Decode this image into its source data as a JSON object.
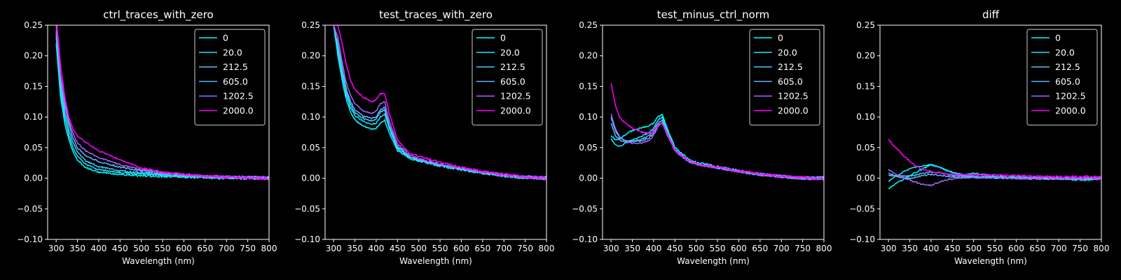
{
  "chart_data": [
    {
      "type": "line",
      "title": "ctrl_traces_with_zero",
      "xlabel": "Wavelength (nm)",
      "ylabel": "",
      "xlim": [
        280,
        800
      ],
      "ylim": [
        -0.1,
        0.25
      ],
      "xticks": [
        300,
        350,
        400,
        450,
        500,
        550,
        600,
        650,
        700,
        750,
        800
      ],
      "xtick_labels": [
        "300",
        "350",
        "400",
        "450",
        "500",
        "550",
        "600",
        "650",
        "700",
        "750",
        "800"
      ],
      "yticks": [
        -0.1,
        -0.05,
        0.0,
        0.05,
        0.1,
        0.15,
        0.2,
        0.25
      ],
      "ytick_labels": [
        "−0.10",
        "−0.05",
        "0.00",
        "0.05",
        "0.10",
        "0.15",
        "0.20",
        "0.25"
      ],
      "legend_position": "top-right",
      "grid": false,
      "x": [
        300,
        310,
        320,
        330,
        340,
        350,
        370,
        400,
        450,
        500,
        550,
        600,
        650,
        700,
        750,
        800
      ],
      "series": [
        {
          "name": "0",
          "color": "#00ffff",
          "values": [
            0.22,
            0.135,
            0.09,
            0.062,
            0.043,
            0.03,
            0.017,
            0.01,
            0.006,
            0.004,
            0.003,
            0.002,
            0.001,
            0.0,
            0.0,
            0.0
          ]
        },
        {
          "name": "20.0",
          "color": "#1ae5ff",
          "values": [
            0.23,
            0.145,
            0.1,
            0.07,
            0.05,
            0.036,
            0.022,
            0.014,
            0.009,
            0.007,
            0.005,
            0.003,
            0.002,
            0.001,
            0.001,
            0.0
          ]
        },
        {
          "name": "212.5",
          "color": "#40ccff",
          "values": [
            0.235,
            0.155,
            0.11,
            0.078,
            0.057,
            0.042,
            0.028,
            0.019,
            0.012,
            0.009,
            0.006,
            0.004,
            0.002,
            0.001,
            0.001,
            0.0
          ]
        },
        {
          "name": "605.0",
          "color": "#66b2ff",
          "values": [
            0.24,
            0.165,
            0.12,
            0.088,
            0.065,
            0.05,
            0.037,
            0.027,
            0.018,
            0.012,
            0.008,
            0.005,
            0.003,
            0.002,
            0.001,
            0.0
          ]
        },
        {
          "name": "1202.5",
          "color": "#a366ff",
          "values": [
            0.25,
            0.17,
            0.125,
            0.093,
            0.072,
            0.058,
            0.044,
            0.034,
            0.022,
            0.014,
            0.009,
            0.006,
            0.003,
            0.002,
            0.001,
            0.0
          ]
        },
        {
          "name": "2000.0",
          "color": "#ff00ff",
          "values": [
            0.265,
            0.185,
            0.135,
            0.1,
            0.08,
            0.068,
            0.058,
            0.045,
            0.03,
            0.017,
            0.01,
            0.006,
            0.004,
            0.002,
            0.001,
            0.0
          ]
        }
      ]
    },
    {
      "type": "line",
      "title": "test_traces_with_zero",
      "xlabel": "Wavelength (nm)",
      "ylabel": "",
      "xlim": [
        280,
        800
      ],
      "ylim": [
        -0.1,
        0.25
      ],
      "xticks": [
        300,
        350,
        400,
        450,
        500,
        550,
        600,
        650,
        700,
        750,
        800
      ],
      "xtick_labels": [
        "300",
        "350",
        "400",
        "450",
        "500",
        "550",
        "600",
        "650",
        "700",
        "750",
        "800"
      ],
      "yticks": [
        -0.1,
        -0.05,
        0.0,
        0.05,
        0.1,
        0.15,
        0.2,
        0.25
      ],
      "ytick_labels": [
        "−0.10",
        "−0.05",
        "0.00",
        "0.05",
        "0.10",
        "0.15",
        "0.20",
        "0.25"
      ],
      "legend_position": "top-right",
      "grid": false,
      "x": [
        300,
        310,
        320,
        330,
        340,
        350,
        370,
        390,
        400,
        410,
        420,
        430,
        450,
        480,
        500,
        550,
        600,
        650,
        700,
        750,
        800
      ],
      "series": [
        {
          "name": "0",
          "color": "#00ffff",
          "values": [
            0.25,
            0.2,
            0.16,
            0.128,
            0.108,
            0.095,
            0.085,
            0.08,
            0.082,
            0.09,
            0.095,
            0.075,
            0.045,
            0.032,
            0.028,
            0.02,
            0.014,
            0.008,
            0.004,
            0.001,
            0.0
          ]
        },
        {
          "name": "20.0",
          "color": "#1ae5ff",
          "values": [
            0.25,
            0.21,
            0.17,
            0.135,
            0.115,
            0.102,
            0.093,
            0.088,
            0.09,
            0.1,
            0.105,
            0.082,
            0.048,
            0.033,
            0.029,
            0.021,
            0.015,
            0.009,
            0.004,
            0.001,
            0.0
          ]
        },
        {
          "name": "212.5",
          "color": "#40ccff",
          "values": [
            0.25,
            0.215,
            0.175,
            0.14,
            0.12,
            0.107,
            0.097,
            0.094,
            0.097,
            0.108,
            0.112,
            0.085,
            0.05,
            0.034,
            0.03,
            0.022,
            0.015,
            0.009,
            0.005,
            0.001,
            0.0
          ]
        },
        {
          "name": "605.0",
          "color": "#66b2ff",
          "values": [
            0.25,
            0.22,
            0.18,
            0.145,
            0.125,
            0.112,
            0.101,
            0.098,
            0.1,
            0.112,
            0.116,
            0.088,
            0.052,
            0.035,
            0.031,
            0.022,
            0.016,
            0.01,
            0.005,
            0.002,
            0.0
          ]
        },
        {
          "name": "1202.5",
          "color": "#a366ff",
          "values": [
            0.25,
            0.23,
            0.19,
            0.155,
            0.135,
            0.122,
            0.11,
            0.106,
            0.11,
            0.122,
            0.125,
            0.095,
            0.056,
            0.037,
            0.032,
            0.023,
            0.016,
            0.01,
            0.005,
            0.002,
            0.0
          ]
        },
        {
          "name": "2000.0",
          "color": "#ff00ff",
          "values": [
            0.25,
            0.25,
            0.22,
            0.185,
            0.16,
            0.145,
            0.132,
            0.125,
            0.128,
            0.138,
            0.138,
            0.108,
            0.062,
            0.04,
            0.036,
            0.026,
            0.018,
            0.011,
            0.006,
            0.002,
            0.0
          ]
        }
      ]
    },
    {
      "type": "line",
      "title": "test_minus_ctrl_norm",
      "xlabel": "Wavelength (nm)",
      "ylabel": "",
      "xlim": [
        280,
        800
      ],
      "ylim": [
        -0.1,
        0.25
      ],
      "xticks": [
        300,
        350,
        400,
        450,
        500,
        550,
        600,
        650,
        700,
        750,
        800
      ],
      "xtick_labels": [
        "300",
        "350",
        "400",
        "450",
        "500",
        "550",
        "600",
        "650",
        "700",
        "750",
        "800"
      ],
      "yticks": [
        -0.1,
        -0.05,
        0.0,
        0.05,
        0.1,
        0.15,
        0.2,
        0.25
      ],
      "ytick_labels": [
        "−0.10",
        "−0.05",
        "0.00",
        "0.05",
        "0.10",
        "0.15",
        "0.20",
        "0.25"
      ],
      "legend_position": "top-right",
      "grid": false,
      "x": [
        300,
        310,
        320,
        330,
        340,
        350,
        370,
        390,
        400,
        410,
        420,
        430,
        450,
        480,
        500,
        550,
        600,
        650,
        700,
        750,
        800
      ],
      "series": [
        {
          "name": "0",
          "color": "#00ffff",
          "values": [
            0.07,
            0.062,
            0.065,
            0.07,
            0.074,
            0.078,
            0.082,
            0.086,
            0.09,
            0.1,
            0.104,
            0.085,
            0.05,
            0.032,
            0.026,
            0.019,
            0.012,
            0.007,
            0.003,
            0.0,
            0.0
          ]
        },
        {
          "name": "20.0",
          "color": "#1ae5ff",
          "values": [
            0.065,
            0.055,
            0.052,
            0.056,
            0.06,
            0.063,
            0.068,
            0.075,
            0.082,
            0.095,
            0.1,
            0.08,
            0.048,
            0.03,
            0.024,
            0.018,
            0.011,
            0.006,
            0.003,
            0.0,
            0.0
          ]
        },
        {
          "name": "212.5",
          "color": "#40ccff",
          "values": [
            0.09,
            0.07,
            0.062,
            0.06,
            0.06,
            0.06,
            0.063,
            0.07,
            0.078,
            0.09,
            0.095,
            0.078,
            0.046,
            0.029,
            0.023,
            0.017,
            0.011,
            0.006,
            0.003,
            0.0,
            0.0
          ]
        },
        {
          "name": "605.0",
          "color": "#66b2ff",
          "values": [
            0.1,
            0.078,
            0.066,
            0.062,
            0.061,
            0.06,
            0.061,
            0.066,
            0.073,
            0.086,
            0.091,
            0.075,
            0.045,
            0.029,
            0.023,
            0.017,
            0.011,
            0.006,
            0.003,
            0.0,
            0.0
          ]
        },
        {
          "name": "1202.5",
          "color": "#a366ff",
          "values": [
            0.105,
            0.082,
            0.068,
            0.062,
            0.059,
            0.057,
            0.057,
            0.062,
            0.07,
            0.084,
            0.09,
            0.074,
            0.044,
            0.028,
            0.022,
            0.017,
            0.011,
            0.006,
            0.003,
            0.0,
            0.0
          ]
        },
        {
          "name": "2000.0",
          "color": "#ff00ff",
          "values": [
            0.155,
            0.12,
            0.1,
            0.092,
            0.087,
            0.082,
            0.076,
            0.073,
            0.076,
            0.086,
            0.09,
            0.076,
            0.046,
            0.03,
            0.024,
            0.018,
            0.012,
            0.007,
            0.003,
            0.001,
            0.0
          ]
        }
      ]
    },
    {
      "type": "line",
      "title": "diff",
      "xlabel": "Wavelength (nm)",
      "ylabel": "",
      "xlim": [
        280,
        800
      ],
      "ylim": [
        -0.1,
        0.25
      ],
      "xticks": [
        300,
        350,
        400,
        450,
        500,
        550,
        600,
        650,
        700,
        750,
        800
      ],
      "xtick_labels": [
        "300",
        "350",
        "400",
        "450",
        "500",
        "550",
        "600",
        "650",
        "700",
        "750",
        "800"
      ],
      "yticks": [
        -0.1,
        -0.05,
        0.0,
        0.05,
        0.1,
        0.15,
        0.2,
        0.25
      ],
      "ytick_labels": [
        "−0.10",
        "−0.05",
        "0.00",
        "0.05",
        "0.10",
        "0.15",
        "0.20",
        "0.25"
      ],
      "legend_position": "top-right",
      "grid": false,
      "x": [
        300,
        320,
        340,
        360,
        380,
        400,
        420,
        440,
        460,
        480,
        500,
        550,
        600,
        650,
        700,
        750,
        800
      ],
      "series": [
        {
          "name": "0",
          "color": "#00ffff",
          "values": [
            -0.018,
            -0.008,
            0.0,
            0.008,
            0.015,
            0.022,
            0.018,
            0.012,
            0.008,
            0.006,
            0.008,
            0.003,
            0.002,
            0.001,
            0.0,
            -0.002,
            0.0
          ]
        },
        {
          "name": "20.0",
          "color": "#1ae5ff",
          "values": [
            -0.005,
            0.005,
            0.012,
            0.018,
            0.02,
            0.022,
            0.018,
            0.012,
            0.007,
            0.004,
            0.003,
            0.002,
            0.001,
            0.0,
            0.0,
            -0.001,
            0.0
          ]
        },
        {
          "name": "212.5",
          "color": "#40ccff",
          "values": [
            0.005,
            0.004,
            0.003,
            0.005,
            0.008,
            0.01,
            0.009,
            0.006,
            0.004,
            0.003,
            0.002,
            0.001,
            0.001,
            0.0,
            0.0,
            0.0,
            0.0
          ]
        },
        {
          "name": "605.0",
          "color": "#66b2ff",
          "values": [
            0.008,
            0.003,
            -0.001,
            0.001,
            0.004,
            0.006,
            0.005,
            0.003,
            0.002,
            0.001,
            0.001,
            0.001,
            0.0,
            0.0,
            0.0,
            0.0,
            0.0
          ]
        },
        {
          "name": "1202.5",
          "color": "#a366ff",
          "values": [
            0.014,
            0.006,
            0.0,
            -0.006,
            -0.01,
            -0.012,
            -0.006,
            -0.002,
            0.0,
            0.001,
            0.001,
            0.001,
            0.0,
            0.0,
            0.0,
            0.0,
            0.0
          ]
        },
        {
          "name": "2000.0",
          "color": "#ff00ff",
          "values": [
            0.063,
            0.048,
            0.034,
            0.022,
            0.014,
            0.011,
            0.009,
            0.007,
            0.006,
            0.006,
            0.006,
            0.005,
            0.004,
            0.003,
            0.002,
            0.002,
            0.002
          ]
        }
      ]
    }
  ]
}
